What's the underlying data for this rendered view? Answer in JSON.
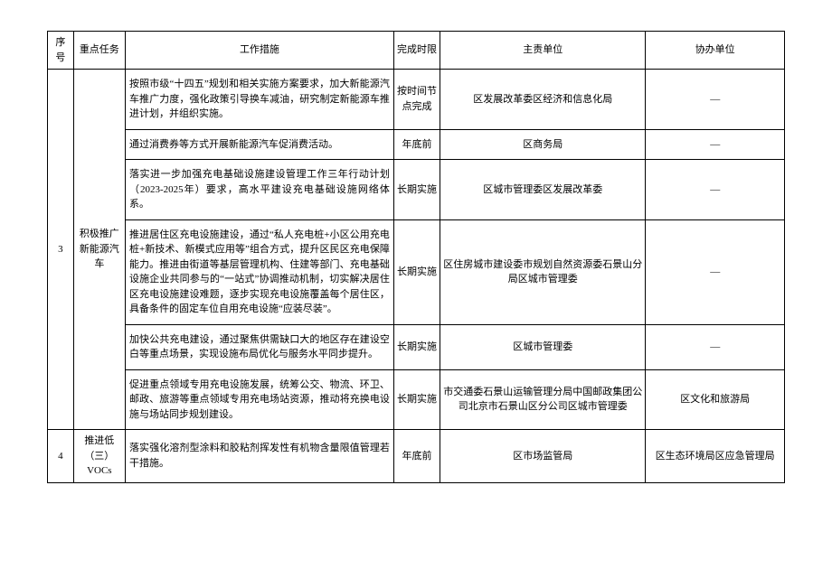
{
  "headers": {
    "seq": "序号",
    "task": "重点任务",
    "measure": "工作措施",
    "deadline": "完成时限",
    "lead": "主责单位",
    "assist": "协办单位"
  },
  "rows": [
    {
      "seq": "3",
      "task": "积极推广新能源汽车",
      "sub": [
        {
          "measure": "按照市级“十四五”规划和相关实施方案要求，加大新能源汽车推广力度，强化政策引导换车减油，研究制定新能源车推进计划，并组织实施。",
          "deadline": "按时间节点完成",
          "lead": "区发展改革委区经济和信息化局",
          "assist": "—"
        },
        {
          "measure": "通过消费券等方式开展新能源汽车促消费活动。",
          "deadline": "年底前",
          "lead": "区商务局",
          "assist": "—"
        },
        {
          "measure": "落实进一步加强充电基础设施建设管理工作三年行动计划（2023-2025年）要求，高水平建设充电基础设施网络体系。",
          "deadline": "长期实施",
          "lead": "区城市管理委区发展改革委",
          "assist": "—"
        },
        {
          "measure": "推进居住区充电设施建设，通过“私人充电桩+小区公用充电桩+新技术、新模式应用等”组合方式，提升区民区充电保障能力。推进由街道等基层管理机构、住建等部门、充电基础设施企业共同参与的“一站式”协调推动机制，切实解决居住区充电设施建设难题，逐步实现充电设施覆盖每个居住区，具备条件的固定车位自用充电设施“应装尽装”。",
          "deadline": "长期实施",
          "lead": "区住房城市建设委市规划自然资源委石景山分局区城市管理委",
          "assist": "—"
        },
        {
          "measure": "加快公共充电建设，通过聚焦供需缺口大的地区存在建设空白等重点场景，实现设施布局优化与服务水平同步提升。",
          "deadline": "长期实施",
          "lead": "区城市管理委",
          "assist": "—"
        },
        {
          "measure": "促进重点领域专用充电设施发展，统筹公交、物流、环卫、邮政、旅游等重点领域专用充电场站资源，推动将充换电设施与场站同步规划建设。",
          "deadline": "长期实施",
          "lead": "市交通委石景山运输管理分局中国邮政集团公司北京市石景山区分公司区城市管理委",
          "assist": "区文化和旅游局"
        }
      ]
    },
    {
      "seq": "4",
      "task": "推进低（三）VOCs",
      "sub": [
        {
          "measure": "落实强化溶剂型涂料和胶粘剂挥发性有机物含量限值管理若干措施。",
          "deadline": "年底前",
          "lead": "区市场监管局",
          "assist": "区生态环境局区应急管理局"
        }
      ]
    }
  ]
}
